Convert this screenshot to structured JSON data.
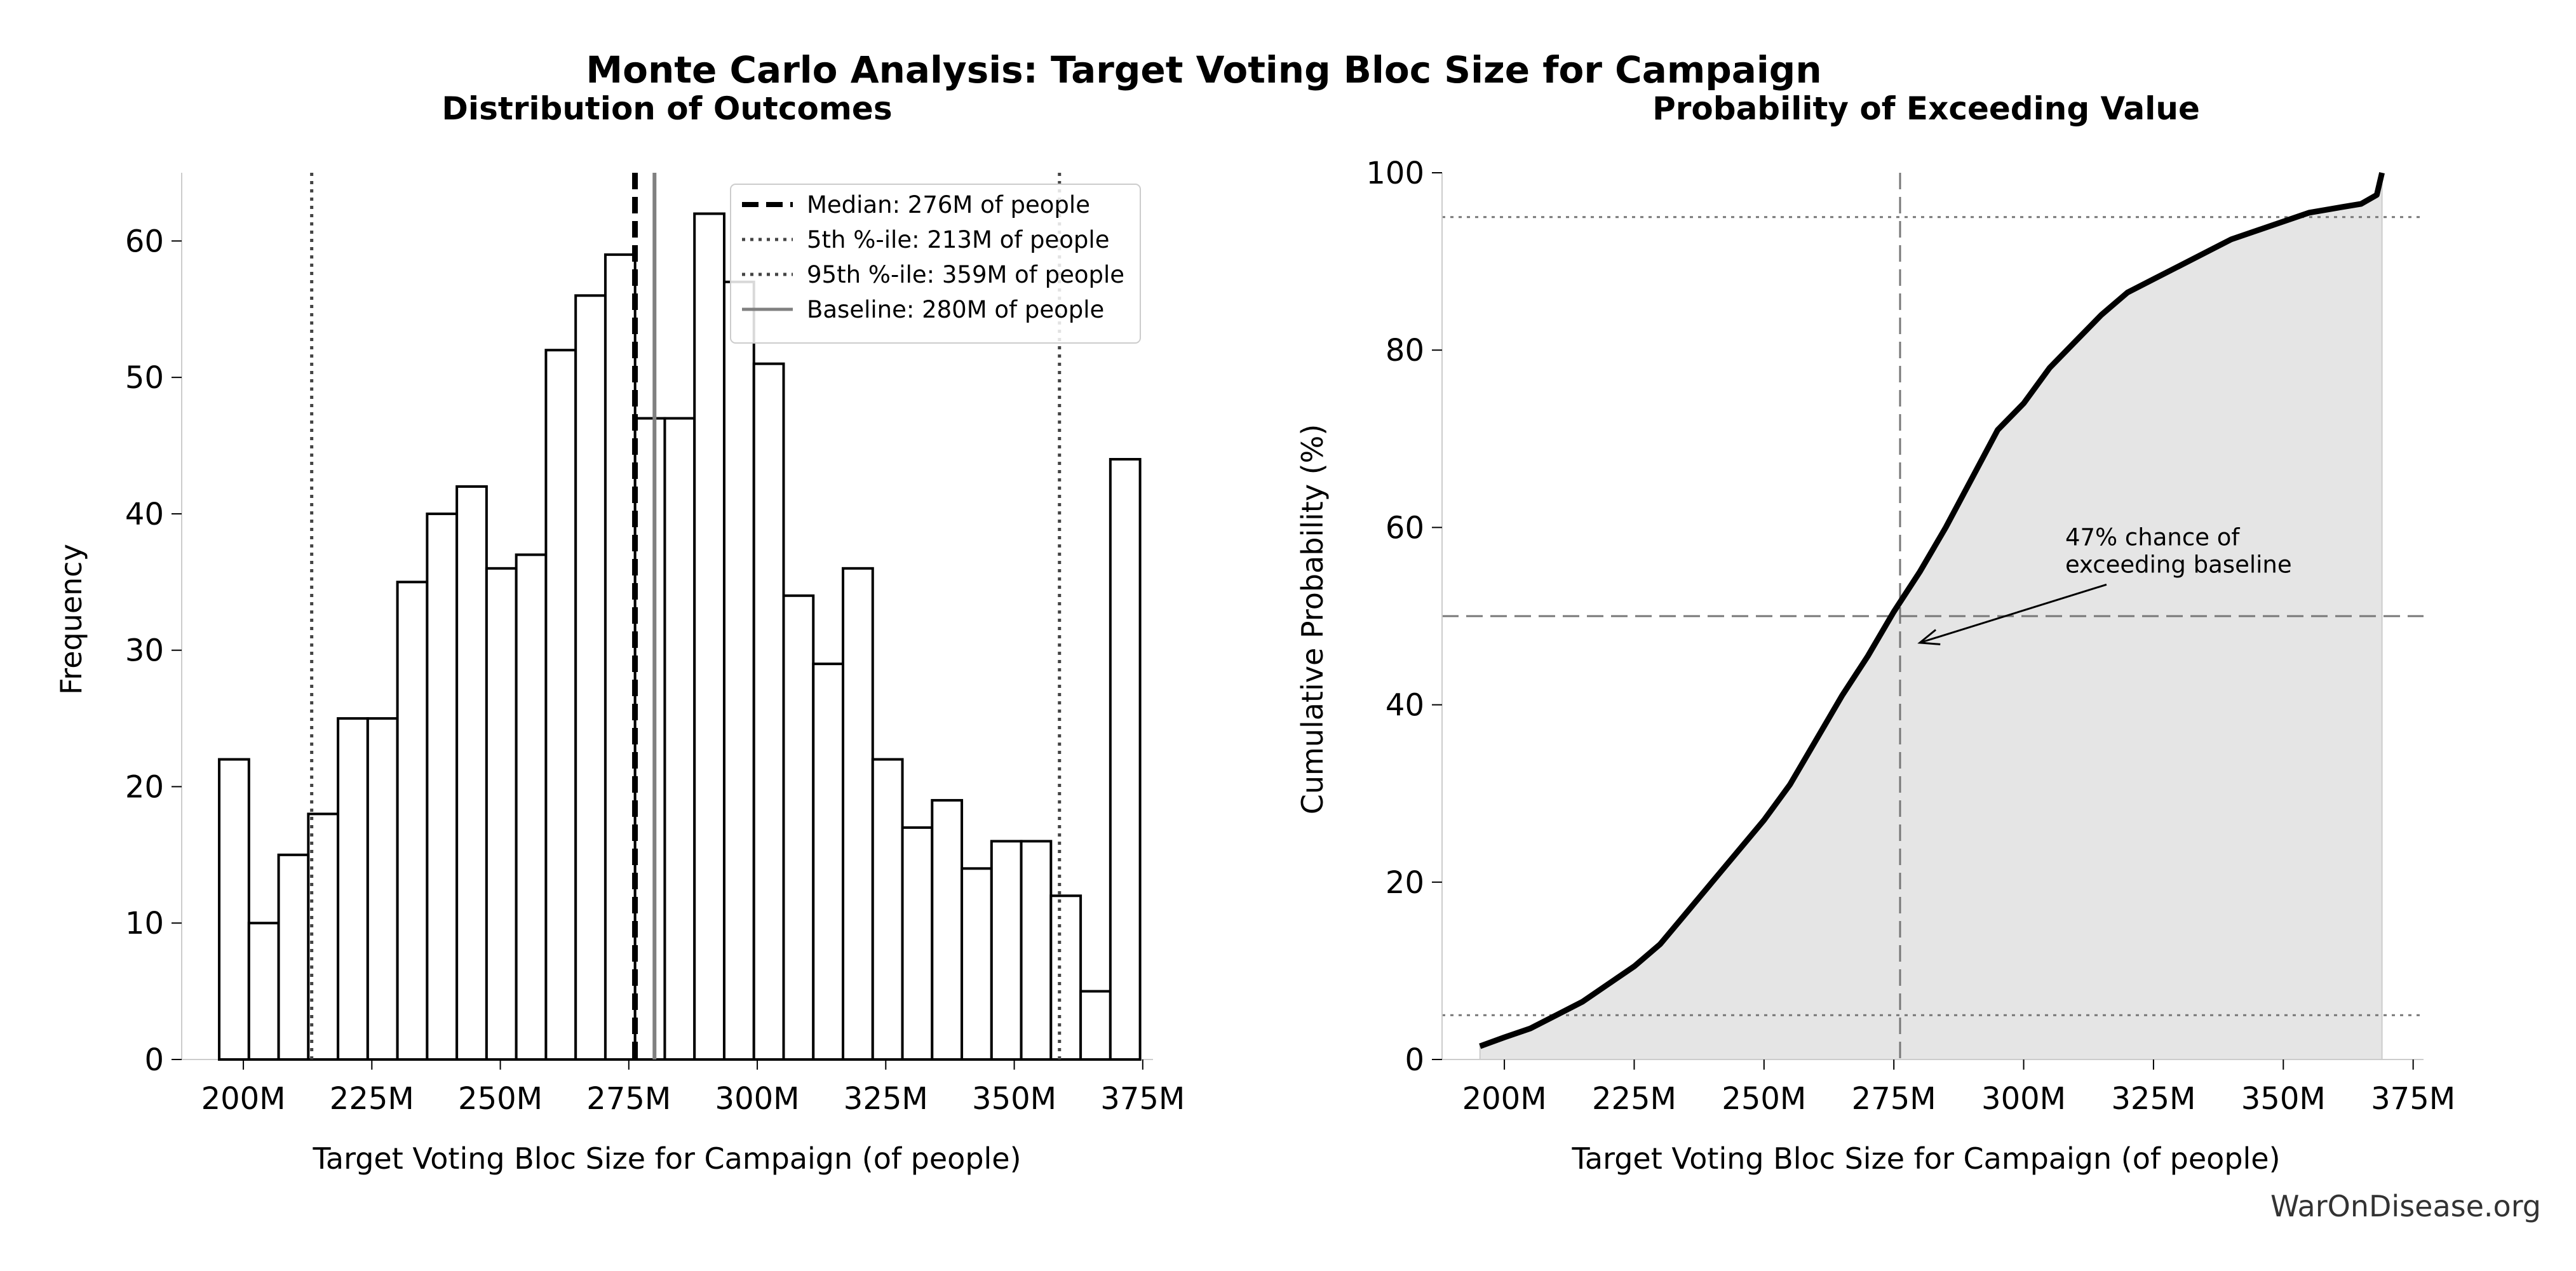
{
  "figure": {
    "title": "Monte Carlo Analysis: Target Voting Bloc Size for Campaign",
    "credit": "WarOnDisease.org"
  },
  "chart_data": [
    {
      "type": "bar",
      "title": "Distribution of Outcomes",
      "xlabel": "Target Voting Bloc Size for Campaign (of people)",
      "ylabel": "Frequency",
      "xlim": [
        188,
        377
      ],
      "ylim": [
        0,
        65
      ],
      "x_ticks": [
        200,
        225,
        250,
        275,
        300,
        325,
        350,
        375
      ],
      "x_tick_labels": [
        "200M",
        "225M",
        "250M",
        "275M",
        "300M",
        "325M",
        "350M",
        "375M"
      ],
      "y_ticks": [
        0,
        10,
        20,
        30,
        40,
        50,
        60
      ],
      "y_tick_labels": [
        "0",
        "10",
        "20",
        "30",
        "40",
        "50",
        "60"
      ],
      "bin_start": 195.3,
      "bin_width": 5.78,
      "bin_counts": [
        22,
        10,
        15,
        18,
        25,
        25,
        35,
        40,
        42,
        36,
        37,
        52,
        56,
        59,
        47,
        47,
        62,
        57,
        51,
        34,
        29,
        36,
        22,
        17,
        19,
        14,
        16,
        16,
        12,
        5,
        44
      ],
      "reference_lines": [
        {
          "label": "Median: 276M of people",
          "x": 276.2,
          "style": "dashed",
          "color": "#000000"
        },
        {
          "label": "5th %-ile: 213M of people",
          "x": 213.3,
          "style": "dotted",
          "color": "#444444"
        },
        {
          "label": "95th %-ile: 359M of people",
          "x": 358.8,
          "style": "dotted",
          "color": "#444444"
        },
        {
          "label": "Baseline: 280M of people",
          "x": 280,
          "style": "solid",
          "color": "#808080"
        }
      ],
      "legend_position": "top-right",
      "grid": false
    },
    {
      "type": "area",
      "title": "Probability of Exceeding Value",
      "xlabel": "Target Voting Bloc Size for Campaign (of people)",
      "ylabel": "Cumulative Probability (%)",
      "xlim": [
        188,
        377
      ],
      "ylim": [
        0,
        100
      ],
      "x_ticks": [
        200,
        225,
        250,
        275,
        300,
        325,
        350,
        375
      ],
      "x_tick_labels": [
        "200M",
        "225M",
        "250M",
        "275M",
        "300M",
        "325M",
        "350M",
        "375M"
      ],
      "y_ticks": [
        0,
        20,
        40,
        60,
        80,
        100
      ],
      "y_tick_labels": [
        "0",
        "20",
        "40",
        "60",
        "80",
        "100"
      ],
      "cdf": {
        "x": [
          195.3,
          200,
          205,
          210,
          215,
          220,
          225,
          230,
          235,
          240,
          245,
          250,
          255,
          260,
          265,
          270,
          275,
          280,
          285,
          290,
          295,
          300,
          305,
          310,
          315,
          320,
          325,
          330,
          335,
          340,
          345,
          350,
          355,
          360,
          365,
          368,
          369
        ],
        "y": [
          1.5,
          2.5,
          3.5,
          5,
          6.5,
          8.5,
          10.5,
          13,
          16.5,
          20,
          23.5,
          27,
          31,
          36,
          41,
          45.5,
          50.5,
          55,
          60,
          65.5,
          71,
          74,
          78,
          81,
          84,
          86.5,
          88,
          89.5,
          91,
          92.5,
          93.5,
          94.5,
          95.5,
          96,
          96.5,
          97.5,
          100
        ]
      },
      "reference_lines": [
        {
          "orientation": "vertical",
          "x": 276.2,
          "style": "dashed"
        },
        {
          "orientation": "horizontal",
          "y": 50,
          "style": "dashed"
        },
        {
          "orientation": "horizontal",
          "y": 95,
          "style": "dotted"
        },
        {
          "orientation": "horizontal",
          "y": 5,
          "style": "dotted"
        }
      ],
      "annotation": {
        "lines": [
          "47% chance of",
          "exceeding baseline"
        ],
        "target_x": 280,
        "target_y": 47,
        "text_x": 308,
        "text_y": 58
      },
      "grid": false
    }
  ]
}
